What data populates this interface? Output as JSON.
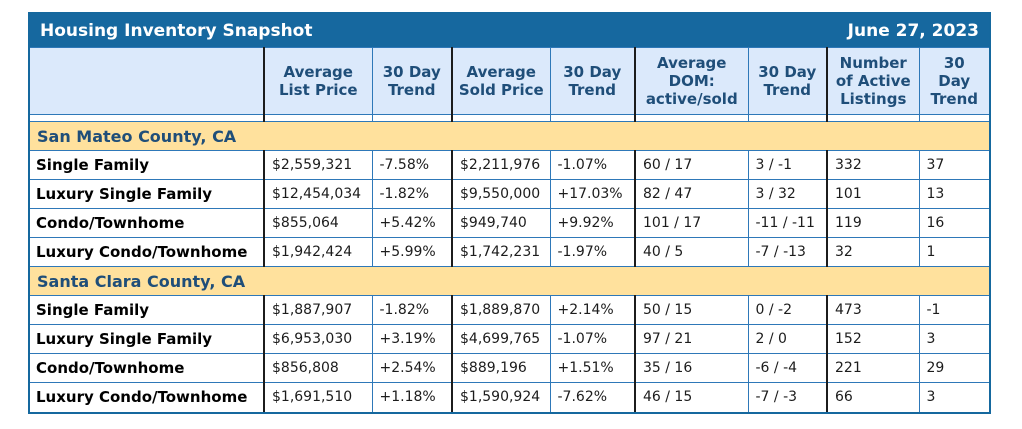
{
  "colors": {
    "title_bar_bg": "#16689F",
    "outer_border": "#15689E",
    "header_bg": "#DBE9FB",
    "header_text": "#1F4E79",
    "section_bg": "#FFE19D",
    "border_blue": "#2E78B8",
    "border_dark": "#1C1C1C",
    "positive": "#1D9B1D",
    "negative": "#F20000"
  },
  "title_bar": {
    "title": "Housing Inventory Snapshot",
    "date": "June 27, 2023"
  },
  "table": {
    "columns": [
      "",
      "Average\nList Price",
      "30 Day\nTrend",
      "Average\nSold Price",
      "30 Day\nTrend",
      "Average\nDOM:\nactive/sold",
      "30 Day\nTrend",
      "Number\nof Active\nListings",
      "30\nDay\nTrend"
    ],
    "sections": [
      {
        "name": "San Mateo County, CA",
        "rows": [
          {
            "label": "Single Family",
            "cells": [
              "$2,559,321",
              "-7.58%",
              "$2,211,976",
              "-1.07%",
              "60 / 17",
              "3 / -1",
              "332",
              "37"
            ]
          },
          {
            "label": "Luxury Single Family",
            "cells": [
              "$12,454,034",
              "-1.82%",
              "$9,550,000",
              "+17.03%",
              "82 / 47",
              "3 / 32",
              "101",
              "13"
            ]
          },
          {
            "label": "Condo/Townhome",
            "cells": [
              "$855,064",
              "+5.42%",
              "$949,740",
              "+9.92%",
              "101 / 17",
              "-11 / -11",
              "119",
              "16"
            ]
          },
          {
            "label": "Luxury Condo/Townhome",
            "cells": [
              "$1,942,424",
              "+5.99%",
              "$1,742,231",
              "-1.97%",
              "40 / 5",
              "-7 / -13",
              "32",
              "1"
            ]
          }
        ]
      },
      {
        "name": "Santa Clara County, CA",
        "rows": [
          {
            "label": "Single Family",
            "cells": [
              "$1,887,907",
              "-1.82%",
              "$1,889,870",
              "+2.14%",
              "50 / 15",
              "0 / -2",
              "473",
              "-1"
            ]
          },
          {
            "label": "Luxury Single Family",
            "cells": [
              "$6,953,030",
              "+3.19%",
              "$4,699,765",
              "-1.07%",
              "97 / 21",
              "2 / 0",
              "152",
              "3"
            ]
          },
          {
            "label": "Condo/Townhome",
            "cells": [
              "$856,808",
              "+2.54%",
              "$889,196",
              "+1.51%",
              "35 / 16",
              "-6 / -4",
              "221",
              "29"
            ]
          },
          {
            "label": "Luxury Condo/Townhome",
            "cells": [
              "$1,691,510",
              "+1.18%",
              "$1,590,924",
              "-7.62%",
              "46 / 15",
              "-7 / -3",
              "66",
              "3"
            ]
          }
        ]
      }
    ]
  },
  "chart_data": {
    "type": "table",
    "title": "Housing Inventory Snapshot",
    "date": "June 27, 2023",
    "columns": [
      "Average List Price",
      "30 Day Trend",
      "Average Sold Price",
      "30 Day Trend",
      "Average DOM: active/sold",
      "30 Day Trend",
      "Number of Active Listings",
      "30 Day Trend"
    ],
    "sections": [
      {
        "name": "San Mateo County, CA",
        "rows": [
          {
            "category": "Single Family",
            "average_list_price": 2559321,
            "list_price_30day_trend_pct": -7.58,
            "average_sold_price": 2211976,
            "sold_price_30day_trend_pct": -1.07,
            "average_dom_active": 60,
            "average_dom_sold": 17,
            "dom_30day_trend_active": 3,
            "dom_30day_trend_sold": -1,
            "number_of_active_listings": 332,
            "listings_30day_trend": 37
          },
          {
            "category": "Luxury Single Family",
            "average_list_price": 12454034,
            "list_price_30day_trend_pct": -1.82,
            "average_sold_price": 9550000,
            "sold_price_30day_trend_pct": 17.03,
            "average_dom_active": 82,
            "average_dom_sold": 47,
            "dom_30day_trend_active": 3,
            "dom_30day_trend_sold": 32,
            "number_of_active_listings": 101,
            "listings_30day_trend": 13
          },
          {
            "category": "Condo/Townhome",
            "average_list_price": 855064,
            "list_price_30day_trend_pct": 5.42,
            "average_sold_price": 949740,
            "sold_price_30day_trend_pct": 9.92,
            "average_dom_active": 101,
            "average_dom_sold": 17,
            "dom_30day_trend_active": -11,
            "dom_30day_trend_sold": -11,
            "number_of_active_listings": 119,
            "listings_30day_trend": 16
          },
          {
            "category": "Luxury Condo/Townhome",
            "average_list_price": 1942424,
            "list_price_30day_trend_pct": 5.99,
            "average_sold_price": 1742231,
            "sold_price_30day_trend_pct": -1.97,
            "average_dom_active": 40,
            "average_dom_sold": 5,
            "dom_30day_trend_active": -7,
            "dom_30day_trend_sold": -13,
            "number_of_active_listings": 32,
            "listings_30day_trend": 1
          }
        ]
      },
      {
        "name": "Santa Clara County, CA",
        "rows": [
          {
            "category": "Single Family",
            "average_list_price": 1887907,
            "list_price_30day_trend_pct": -1.82,
            "average_sold_price": 1889870,
            "sold_price_30day_trend_pct": 2.14,
            "average_dom_active": 50,
            "average_dom_sold": 15,
            "dom_30day_trend_active": 0,
            "dom_30day_trend_sold": -2,
            "number_of_active_listings": 473,
            "listings_30day_trend": -1
          },
          {
            "category": "Luxury Single Family",
            "average_list_price": 6953030,
            "list_price_30day_trend_pct": 3.19,
            "average_sold_price": 4699765,
            "sold_price_30day_trend_pct": -1.07,
            "average_dom_active": 97,
            "average_dom_sold": 21,
            "dom_30day_trend_active": 2,
            "dom_30day_trend_sold": 0,
            "number_of_active_listings": 152,
            "listings_30day_trend": 3
          },
          {
            "category": "Condo/Townhome",
            "average_list_price": 856808,
            "list_price_30day_trend_pct": 2.54,
            "average_sold_price": 889196,
            "sold_price_30day_trend_pct": 1.51,
            "average_dom_active": 35,
            "average_dom_sold": 16,
            "dom_30day_trend_active": -6,
            "dom_30day_trend_sold": -4,
            "number_of_active_listings": 221,
            "listings_30day_trend": 29
          },
          {
            "category": "Luxury Condo/Townhome",
            "average_list_price": 1691510,
            "list_price_30day_trend_pct": 1.18,
            "average_sold_price": 1590924,
            "sold_price_30day_trend_pct": -7.62,
            "average_dom_active": 46,
            "average_dom_sold": 15,
            "dom_30day_trend_active": -7,
            "dom_30day_trend_sold": -3,
            "number_of_active_listings": 66,
            "listings_30day_trend": 3
          }
        ]
      }
    ]
  }
}
